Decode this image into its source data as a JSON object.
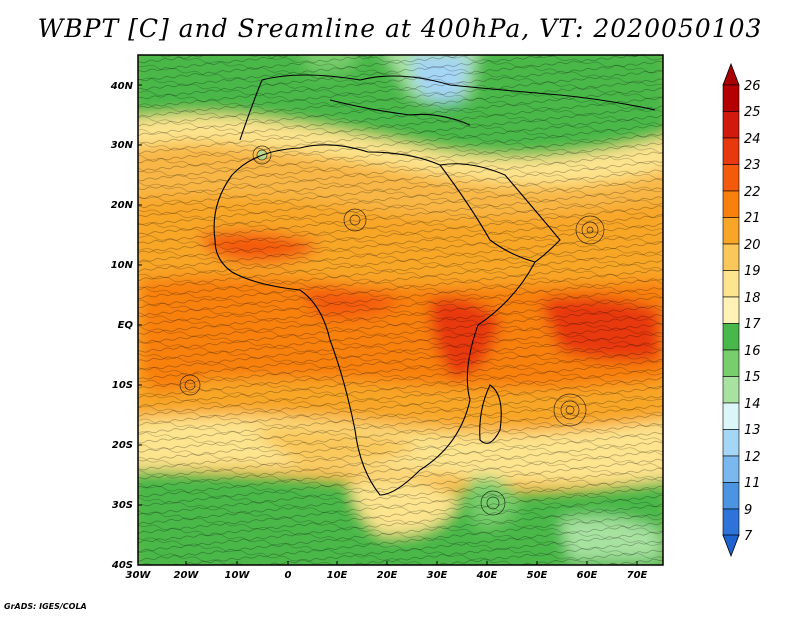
{
  "title": "WBPT [C] and Sreamline at 400hPa, VT: 2020050103",
  "map": {
    "variable": "WBPT [C]",
    "level": "400hPa",
    "valid_time": "2020050103",
    "lon_labels": [
      "30W",
      "20W",
      "10W",
      "0",
      "10E",
      "20E",
      "30E",
      "40E",
      "50E",
      "60E",
      "70E"
    ],
    "lat_labels": [
      "40N",
      "30N",
      "20N",
      "10N",
      "EQ",
      "10S",
      "20S",
      "30S",
      "40S"
    ]
  },
  "colorbar": {
    "labels": [
      "26",
      "25",
      "24",
      "23",
      "22",
      "21",
      "20",
      "19",
      "18",
      "17",
      "16",
      "15",
      "14",
      "13",
      "12",
      "11",
      "9",
      "7"
    ],
    "colors": [
      "#b40000",
      "#d21a0c",
      "#e8380e",
      "#f45a0c",
      "#f8800c",
      "#f8a628",
      "#fac85a",
      "#fde48e",
      "#fef2b6",
      "#48b84a",
      "#78cd6c",
      "#a8e2a0",
      "#dcf5f8",
      "#a6d6f6",
      "#7ab8ee",
      "#4c94e2",
      "#2e74d8"
    ],
    "top_arrow_color": "#a80000",
    "bottom_arrow_color": "#1e64d0"
  },
  "credit": "GrADS: IGES/COLA"
}
